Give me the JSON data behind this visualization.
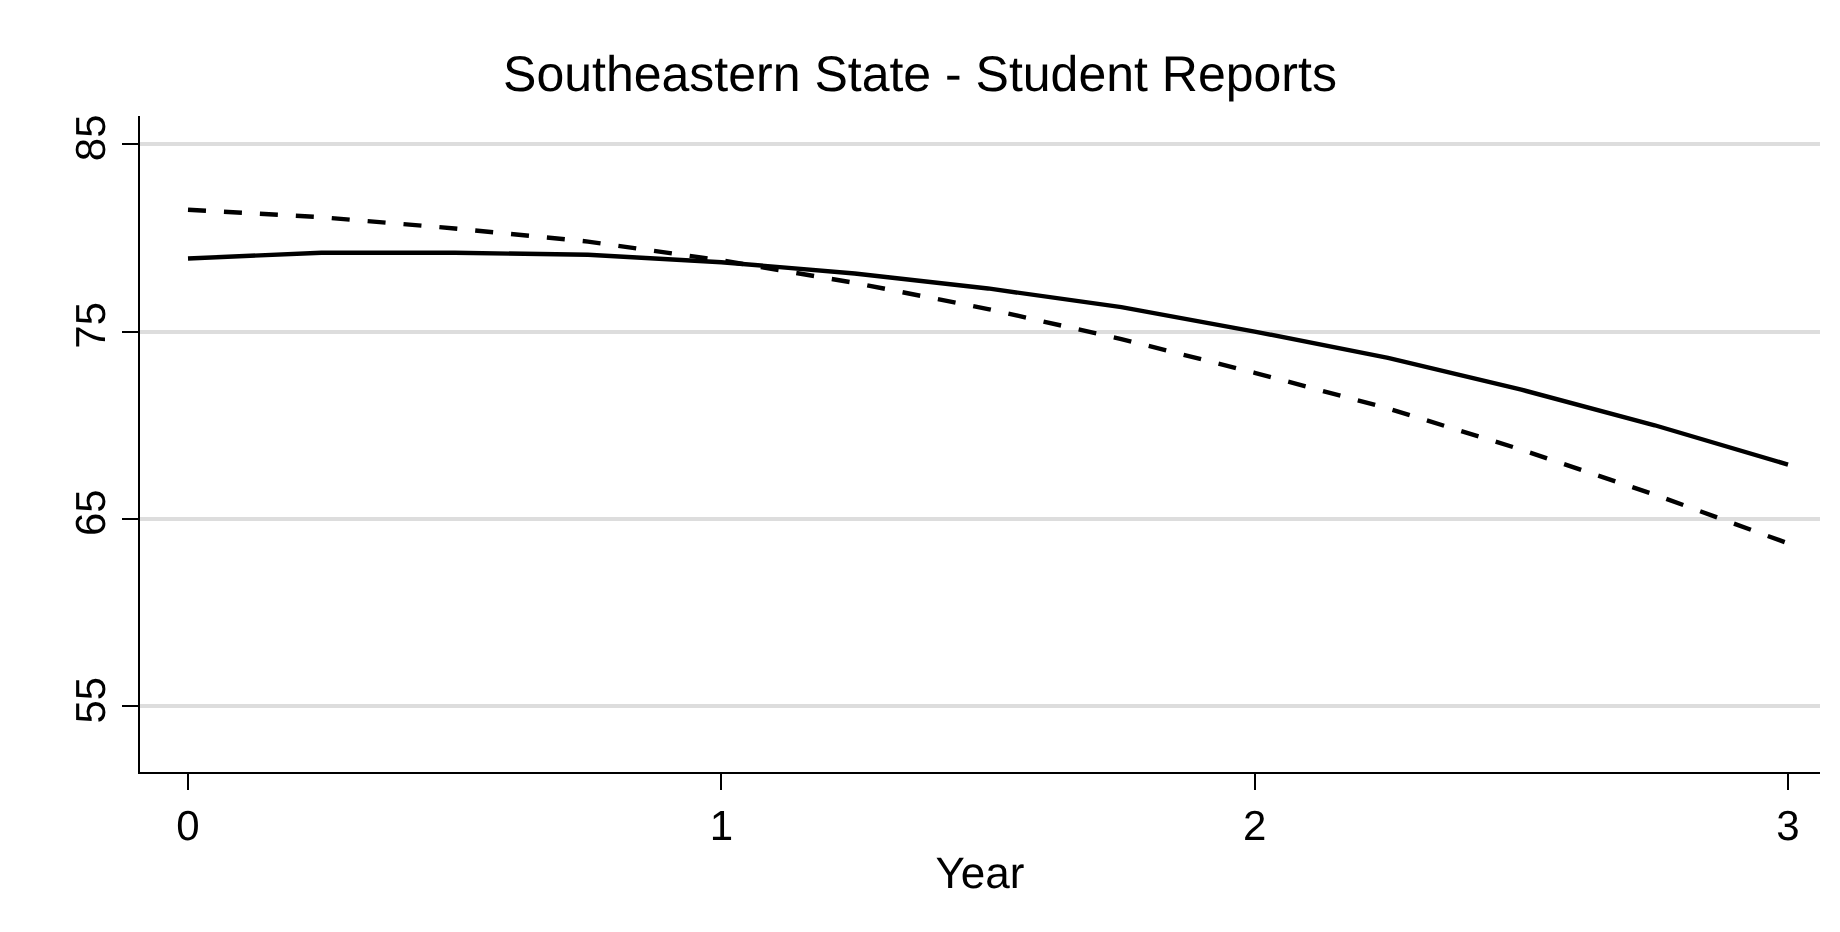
{
  "chart_data": {
    "type": "line",
    "title": "Southeastern State - Student Reports",
    "xlabel": "Year",
    "x": [
      0,
      0.25,
      0.5,
      0.75,
      1,
      1.25,
      1.5,
      1.75,
      2,
      2.25,
      2.5,
      2.75,
      3
    ],
    "series": [
      {
        "color": "#000000",
        "line_style": "solid",
        "values": [
          78.9,
          79.2,
          79.2,
          79.1,
          78.7,
          78.1,
          77.3,
          76.3,
          75.0,
          73.6,
          71.9,
          70.0,
          67.9
        ]
      },
      {
        "color": "#000000",
        "line_style": "dashed",
        "values": [
          81.5,
          81.1,
          80.5,
          79.8,
          78.8,
          77.6,
          76.2,
          74.6,
          72.8,
          70.9,
          68.7,
          66.3,
          63.7
        ]
      }
    ],
    "xlim": [
      -0.09,
      3.06
    ],
    "xticks": [
      0,
      1,
      2,
      3
    ],
    "ylim": [
      51.5,
      86.5
    ],
    "yticks": [
      55,
      65,
      75,
      85
    ],
    "grid": "y",
    "marker": "none"
  }
}
